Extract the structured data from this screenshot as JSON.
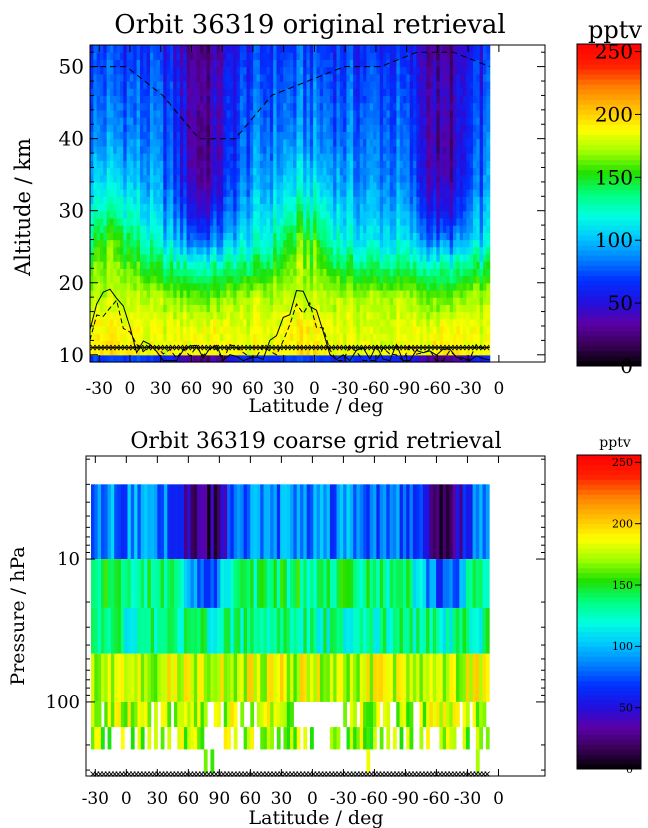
{
  "colors": {
    "colormap": [
      "#000000",
      "#3a0058",
      "#5a00a8",
      "#2010e0",
      "#0030ff",
      "#0080ff",
      "#00c8ff",
      "#00ffe0",
      "#00ff80",
      "#20e000",
      "#a0ff00",
      "#ffff00",
      "#ffc000",
      "#ff8000",
      "#ff2000",
      "#ff0000"
    ],
    "contour": "#000000"
  },
  "chart_data": [
    {
      "type": "heatmap",
      "title": "Orbit 36319 original retrieval",
      "xlabel": "Latitude / deg",
      "ylabel": "Altitude / km",
      "x_tick_labels": [
        "-30",
        "0",
        "30",
        "60",
        "90",
        "60",
        "30",
        "0",
        "-30",
        "-60",
        "-90",
        "-60",
        "-30",
        "0"
      ],
      "y_ticks": [
        10,
        20,
        30,
        40,
        50
      ],
      "ylim": [
        9,
        53
      ],
      "colorbar": {
        "label": "pptv",
        "ticks": [
          0,
          50,
          100,
          150,
          200,
          250
        ],
        "range": [
          0,
          256
        ]
      },
      "columns": 120,
      "altitudes_km": [
        10,
        14,
        18,
        22,
        26,
        30,
        34,
        38,
        42,
        46,
        50,
        53
      ],
      "value_profiles": {
        "background": [
          185,
          180,
          175,
          140,
          110,
          100,
          90,
          85,
          80,
          75,
          70,
          65
        ],
        "tropics": [
          195,
          190,
          175,
          170,
          155,
          130,
          110,
          95,
          85,
          80,
          75,
          70
        ],
        "polar_low": [
          190,
          185,
          160,
          130,
          80,
          50,
          35,
          30,
          30,
          35,
          30,
          25
        ]
      },
      "dashed_line_top_km": [
        50,
        50,
        46,
        40,
        40,
        46,
        48,
        50,
        50,
        52,
        52,
        50
      ],
      "marker_altitude_km": 11
    },
    {
      "type": "heatmap",
      "title": "Orbit 36319 coarse grid retrieval",
      "xlabel": "Latitude / deg",
      "ylabel": "Pressure / hPa",
      "x_tick_labels": [
        "-30",
        "0",
        "30",
        "60",
        "90",
        "60",
        "30",
        "0",
        "-30",
        "-60",
        "-90",
        "-60",
        "-30",
        "0"
      ],
      "y_tick_labels": [
        "10",
        "100"
      ],
      "y_scale": "log",
      "colorbar": {
        "label": "pptv",
        "ticks": [
          0,
          50,
          100,
          150,
          200,
          250
        ],
        "range": [
          0,
          256
        ]
      },
      "columns": 120,
      "pressure_levels_hPa": [
        3,
        10,
        22,
        46,
        100,
        150,
        215,
        316
      ],
      "level_values": [
        85,
        140,
        130,
        180,
        175,
        170,
        170
      ],
      "marker_pressure_hPa": 320
    }
  ]
}
